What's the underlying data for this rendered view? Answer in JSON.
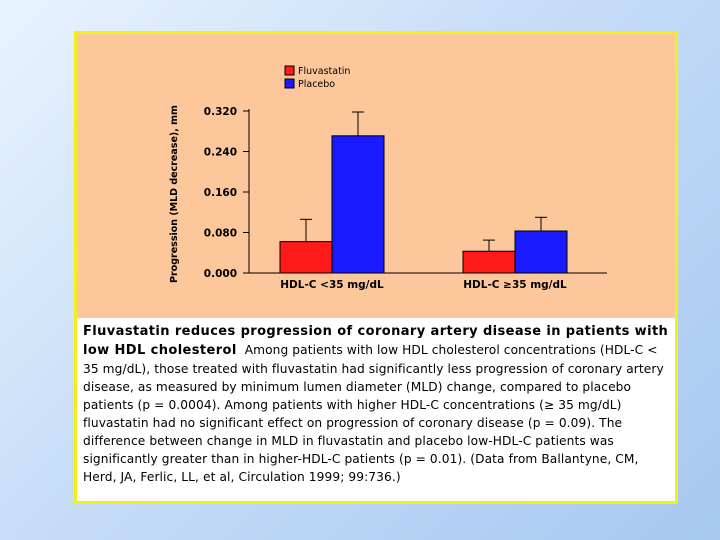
{
  "slide": {
    "caption_title": "Fluvastatin reduces progression of coronary artery disease in patients with low HDL cholesterol",
    "caption_body": "Among patients with low HDL cholesterol concentrations (HDL-C < 35 mg/dL), those treated with fluvastatin had significantly less progression  of coronary artery disease, as measured by minimum lumen diameter (MLD) change, compared to placebo patients (p = 0.0004). Among patients with higher HDL-C  concentrations (≥ 35 mg/dL) fluvastatin had no significant effect on progression of coronary disease (p = 0.09). The difference between change in MLD in fluvastatin and placebo low-HDL-C patients was significantly greater than in higher-HDL-C patients (p = 0.01).  (Data from Ballantyne, CM, Herd, JA, Ferlic, LL, et al, Circulation 1999; 99:736.)"
  },
  "colors": {
    "background_panel": "#fcc79b",
    "border": "#f4ee1c",
    "fluvastatin": "#ff1a1a",
    "placebo": "#1a1aff"
  },
  "chart_data": {
    "type": "bar",
    "ylabel": "Progression (MLD decrease), mm",
    "categories": [
      "HDL-C <35 mg/dL",
      "HDL-C ≥35 mg/dL"
    ],
    "series": [
      {
        "name": "Fluvastatin",
        "values": [
          0.062,
          0.043
        ],
        "error": [
          0.044,
          0.022
        ],
        "color": "#ff1a1a"
      },
      {
        "name": "Placebo",
        "values": [
          0.271,
          0.083
        ],
        "error": [
          0.047,
          0.027
        ],
        "color": "#1a1aff"
      }
    ],
    "ylim": [
      0.0,
      0.32
    ],
    "yticks": [
      "0.000",
      "0.080",
      "0.160",
      "0.240",
      "0.320"
    ],
    "legend_position": "top-left",
    "grid": false
  }
}
